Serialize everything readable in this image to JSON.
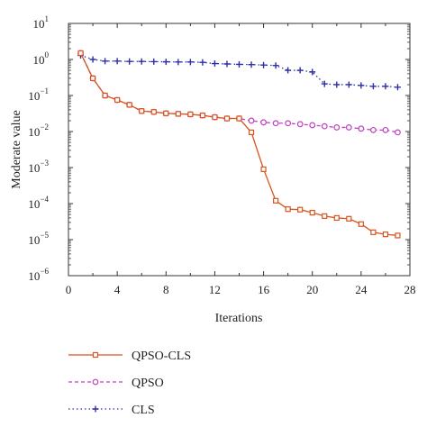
{
  "chart_data": {
    "type": "line",
    "xlabel": "Iterations",
    "ylabel": "Moderate value",
    "xlim": [
      0,
      28
    ],
    "ylim_log10": [
      -6,
      1
    ],
    "y_scale": "log",
    "grid": false,
    "legend_position": "bottom",
    "x_ticks": [
      {
        "value": 0,
        "label": "0"
      },
      {
        "value": 4,
        "label": "4"
      },
      {
        "value": 8,
        "label": "8"
      },
      {
        "value": 12,
        "label": "12"
      },
      {
        "value": 16,
        "label": "16"
      },
      {
        "value": 20,
        "label": "20"
      },
      {
        "value": 24,
        "label": "24"
      },
      {
        "value": 28,
        "label": "28"
      }
    ],
    "y_ticks": [
      {
        "exp": 1,
        "base": "10",
        "sup": "1"
      },
      {
        "exp": 0,
        "base": "10",
        "sup": "0"
      },
      {
        "exp": -1,
        "base": "10",
        "sup": "−1"
      },
      {
        "exp": -2,
        "base": "10",
        "sup": "−2"
      },
      {
        "exp": -3,
        "base": "10",
        "sup": "−3"
      },
      {
        "exp": -4,
        "base": "10",
        "sup": "−4"
      },
      {
        "exp": -5,
        "base": "10",
        "sup": "−5"
      },
      {
        "exp": -6,
        "base": "10",
        "sup": "−6"
      }
    ],
    "x": [
      1,
      2,
      3,
      4,
      5,
      6,
      7,
      8,
      9,
      10,
      11,
      12,
      13,
      14,
      15,
      16,
      17,
      18,
      19,
      20,
      21,
      22,
      23,
      24,
      25,
      26,
      27
    ],
    "series": [
      {
        "name": "QPSO-CLS",
        "color": "#d9541e",
        "marker": "square",
        "dash": "solid",
        "values": [
          1.5,
          0.3,
          0.1,
          0.075,
          0.055,
          0.037,
          0.035,
          0.032,
          0.031,
          0.03,
          0.028,
          0.025,
          0.023,
          0.023,
          0.0095,
          0.0009,
          0.00012,
          7e-05,
          6.8e-05,
          5.6e-05,
          4.5e-05,
          4e-05,
          3.8e-05,
          2.7e-05,
          1.6e-05,
          1.4e-05,
          1.3e-05
        ]
      },
      {
        "name": "QPSO",
        "color": "#c040c0",
        "marker": "circle",
        "dash": "dashed",
        "values": [
          1.5,
          0.3,
          0.1,
          0.075,
          0.055,
          0.037,
          0.035,
          0.032,
          0.031,
          0.03,
          0.028,
          0.025,
          0.023,
          0.023,
          0.02,
          0.018,
          0.017,
          0.017,
          0.016,
          0.015,
          0.014,
          0.013,
          0.013,
          0.012,
          0.011,
          0.011,
          0.0095
        ]
      },
      {
        "name": "CLS",
        "color": "#2f2fa8",
        "marker": "plus",
        "dash": "dotted",
        "values": [
          1.3,
          1.0,
          0.9,
          0.9,
          0.88,
          0.88,
          0.87,
          0.86,
          0.85,
          0.85,
          0.83,
          0.77,
          0.75,
          0.73,
          0.72,
          0.7,
          0.68,
          0.5,
          0.5,
          0.45,
          0.21,
          0.2,
          0.2,
          0.19,
          0.18,
          0.18,
          0.17
        ]
      }
    ]
  }
}
